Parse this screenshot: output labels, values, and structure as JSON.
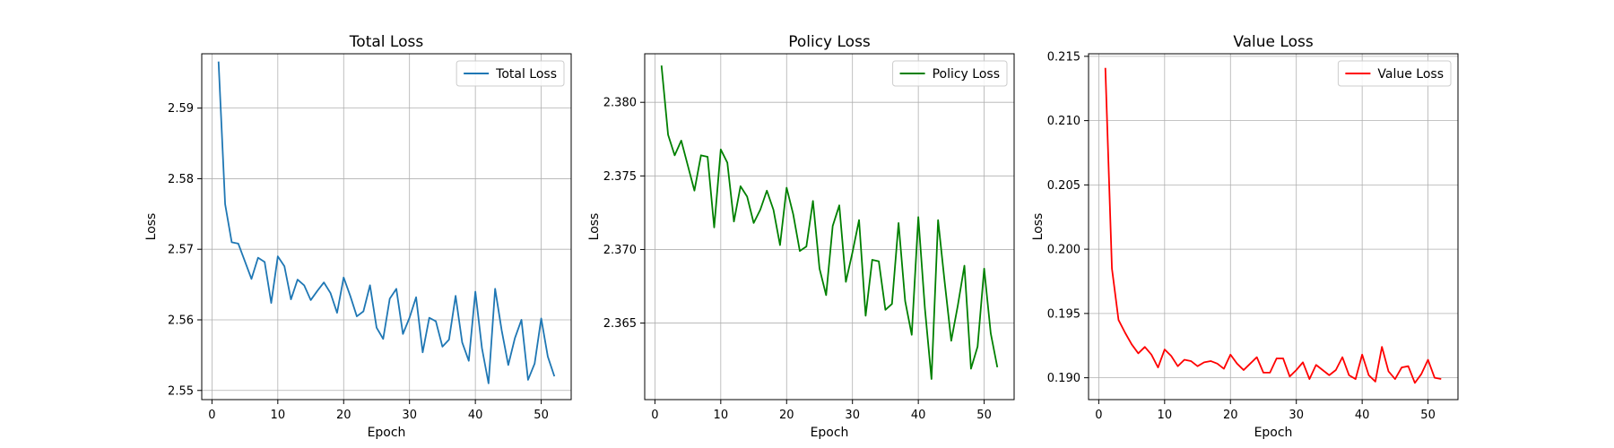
{
  "chart_data": [
    {
      "type": "line",
      "title": "Total Loss",
      "xlabel": "Epoch",
      "ylabel": "Loss",
      "xlim": [
        -1.55,
        54.55
      ],
      "ylim": [
        2.5487,
        2.5977
      ],
      "xticks": [
        0,
        10,
        20,
        30,
        40,
        50
      ],
      "yticks": [
        2.55,
        2.56,
        2.57,
        2.58,
        2.59
      ],
      "grid": true,
      "legend_position": "top-right",
      "series": [
        {
          "name": "Total Loss",
          "color": "#1f77b4",
          "x": [
            1,
            2,
            3,
            4,
            5,
            6,
            7,
            8,
            9,
            10,
            11,
            12,
            13,
            14,
            15,
            16,
            17,
            18,
            19,
            20,
            21,
            22,
            23,
            24,
            25,
            26,
            27,
            28,
            29,
            30,
            31,
            32,
            33,
            34,
            35,
            36,
            37,
            38,
            39,
            40,
            41,
            42,
            43,
            44,
            45,
            46,
            47,
            48,
            49,
            50,
            51,
            52
          ],
          "values": [
            2.5966,
            2.5764,
            2.571,
            2.5708,
            2.5683,
            2.5658,
            2.5688,
            2.5682,
            2.5624,
            2.569,
            2.5676,
            2.5629,
            2.5657,
            2.5649,
            2.5628,
            2.5641,
            2.5653,
            2.5638,
            2.561,
            2.566,
            2.5634,
            2.5605,
            2.5612,
            2.5649,
            2.5589,
            2.5573,
            2.563,
            2.5644,
            2.558,
            2.5603,
            2.5632,
            2.5554,
            2.5603,
            2.5598,
            2.5562,
            2.5572,
            2.5634,
            2.5568,
            2.5542,
            2.564,
            2.556,
            2.551,
            2.5644,
            2.5585,
            2.5536,
            2.5574,
            2.56,
            2.5515,
            2.5538,
            2.5602,
            2.5548,
            2.552
          ]
        }
      ]
    },
    {
      "type": "line",
      "title": "Policy Loss",
      "xlabel": "Epoch",
      "ylabel": "Loss",
      "xlim": [
        -1.55,
        54.55
      ],
      "ylim": [
        2.3598,
        2.3833
      ],
      "xticks": [
        0,
        10,
        20,
        30,
        40,
        50
      ],
      "yticks": [
        2.365,
        2.37,
        2.375,
        2.38
      ],
      "yticklabels": [
        "2.365",
        "2.370",
        "2.375",
        "2.380"
      ],
      "grid": true,
      "legend_position": "top-right",
      "series": [
        {
          "name": "Policy Loss",
          "color": "#008000",
          "x": [
            1,
            2,
            3,
            4,
            5,
            6,
            7,
            8,
            9,
            10,
            11,
            12,
            13,
            14,
            15,
            16,
            17,
            18,
            19,
            20,
            21,
            22,
            23,
            24,
            25,
            26,
            27,
            28,
            29,
            30,
            31,
            32,
            33,
            34,
            35,
            36,
            37,
            38,
            39,
            40,
            41,
            42,
            43,
            44,
            45,
            46,
            47,
            48,
            49,
            50,
            51,
            52
          ],
          "values": [
            2.3825,
            2.3778,
            2.3764,
            2.3774,
            2.3757,
            2.374,
            2.3764,
            2.3763,
            2.3715,
            2.3768,
            2.3759,
            2.3719,
            2.3743,
            2.3736,
            2.3718,
            2.3727,
            2.374,
            2.3727,
            2.3703,
            2.3742,
            2.3724,
            2.3699,
            2.3702,
            2.3733,
            2.3687,
            2.3669,
            2.3716,
            2.373,
            2.3678,
            2.3698,
            2.372,
            2.3655,
            2.3693,
            2.3692,
            2.3659,
            2.3663,
            2.3718,
            2.3665,
            2.3642,
            2.3722,
            2.366,
            2.3612,
            2.372,
            2.3678,
            2.3638,
            2.3662,
            2.3689,
            2.3619,
            2.3634,
            2.3687,
            2.3643,
            2.362
          ]
        }
      ]
    },
    {
      "type": "line",
      "title": "Value Loss",
      "xlabel": "Epoch",
      "ylabel": "Loss",
      "xlim": [
        -1.55,
        54.55
      ],
      "ylim": [
        0.1883,
        0.2152
      ],
      "xticks": [
        0,
        10,
        20,
        30,
        40,
        50
      ],
      "yticks": [
        0.19,
        0.195,
        0.2,
        0.205,
        0.21,
        0.215
      ],
      "yticklabels": [
        "0.190",
        "0.195",
        "0.200",
        "0.205",
        "0.210",
        "0.215"
      ],
      "grid": true,
      "legend_position": "top-right",
      "series": [
        {
          "name": "Value Loss",
          "color": "#ff0000",
          "x": [
            1,
            2,
            3,
            4,
            5,
            6,
            7,
            8,
            9,
            10,
            11,
            12,
            13,
            14,
            15,
            16,
            17,
            18,
            19,
            20,
            21,
            22,
            23,
            24,
            25,
            26,
            27,
            28,
            29,
            30,
            31,
            32,
            33,
            34,
            35,
            36,
            37,
            38,
            39,
            40,
            41,
            42,
            43,
            44,
            45,
            46,
            47,
            48,
            49,
            50,
            51,
            52
          ],
          "values": [
            0.2141,
            0.1985,
            0.1945,
            0.1935,
            0.1926,
            0.1919,
            0.1924,
            0.1918,
            0.1908,
            0.1922,
            0.1917,
            0.1909,
            0.1914,
            0.1913,
            0.1909,
            0.1912,
            0.1913,
            0.1911,
            0.1907,
            0.1918,
            0.1911,
            0.1906,
            0.1911,
            0.1916,
            0.1904,
            0.1904,
            0.1915,
            0.1915,
            0.1901,
            0.1906,
            0.1912,
            0.1899,
            0.191,
            0.1906,
            0.1902,
            0.1906,
            0.1916,
            0.1902,
            0.1899,
            0.1918,
            0.1902,
            0.1897,
            0.1924,
            0.1905,
            0.1899,
            0.1908,
            0.1909,
            0.1896,
            0.1903,
            0.1914,
            0.19,
            0.1899
          ]
        }
      ]
    }
  ]
}
